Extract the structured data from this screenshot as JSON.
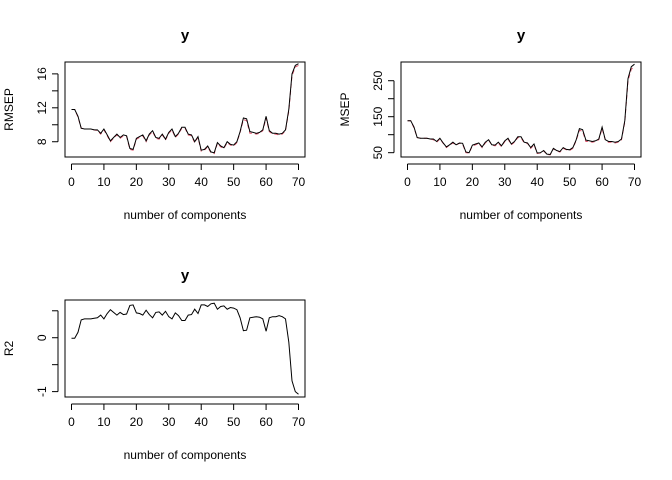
{
  "chart_data": [
    {
      "type": "line",
      "title": "y",
      "xlabel": "number of components",
      "ylabel": "RMSEP",
      "xlim": [
        -2,
        72
      ],
      "ylim": [
        6.2,
        17.4
      ],
      "xticks": [
        0,
        10,
        20,
        30,
        40,
        50,
        60,
        70
      ],
      "yticks": [
        8,
        12,
        16
      ],
      "yticks_minor": [
        10,
        14
      ],
      "x": [
        0,
        1,
        2,
        3,
        4,
        5,
        6,
        7,
        8,
        9,
        10,
        11,
        12,
        13,
        14,
        15,
        16,
        17,
        18,
        19,
        20,
        21,
        22,
        23,
        24,
        25,
        26,
        27,
        28,
        29,
        30,
        31,
        32,
        33,
        34,
        35,
        36,
        37,
        38,
        39,
        40,
        41,
        42,
        43,
        44,
        45,
        46,
        47,
        48,
        49,
        50,
        51,
        52,
        53,
        54,
        55,
        56,
        57,
        58,
        59,
        60,
        61,
        62,
        63,
        64,
        65,
        66,
        67,
        68,
        69,
        70
      ],
      "series": [
        {
          "values": [
            11.8,
            11.8,
            11.0,
            9.6,
            9.5,
            9.5,
            9.5,
            9.4,
            9.4,
            9.0,
            9.5,
            8.8,
            8.1,
            8.5,
            8.9,
            8.5,
            8.8,
            8.7,
            7.2,
            7.1,
            8.4,
            8.6,
            8.8,
            8.1,
            8.9,
            9.3,
            8.5,
            8.4,
            8.9,
            8.3,
            9.1,
            9.5,
            8.6,
            9.0,
            9.7,
            9.7,
            8.9,
            8.8,
            8.0,
            8.6,
            7.0,
            7.1,
            7.5,
            6.8,
            6.7,
            7.9,
            7.5,
            7.3,
            8.0,
            7.7,
            7.6,
            8.0,
            9.2,
            10.8,
            10.7,
            9.2,
            9.1,
            9.0,
            9.1,
            9.4,
            11.0,
            9.3,
            9.0,
            9.0,
            8.9,
            9.0,
            9.4,
            11.8,
            16.0,
            17.0,
            17.2
          ],
          "color": "#000000",
          "dash": "solid"
        },
        {
          "values": [
            11.8,
            11.8,
            10.9,
            9.6,
            9.5,
            9.5,
            9.5,
            9.4,
            9.3,
            8.9,
            9.4,
            8.7,
            8.0,
            8.4,
            8.8,
            8.4,
            8.7,
            8.6,
            7.1,
            7.0,
            8.3,
            8.5,
            8.7,
            8.0,
            8.8,
            9.2,
            8.4,
            8.3,
            8.8,
            8.2,
            9.0,
            9.4,
            8.5,
            8.9,
            9.6,
            9.6,
            8.8,
            8.7,
            7.9,
            8.5,
            6.9,
            7.0,
            7.4,
            6.7,
            6.6,
            7.8,
            7.4,
            7.2,
            7.9,
            7.6,
            7.5,
            7.9,
            9.1,
            10.6,
            10.5,
            9.0,
            9.0,
            8.9,
            9.0,
            9.3,
            10.8,
            9.2,
            8.9,
            8.9,
            8.8,
            8.9,
            9.3,
            11.6,
            15.8,
            16.8,
            17.0
          ],
          "color": "#df536b",
          "dash": "dashed"
        }
      ]
    },
    {
      "type": "line",
      "title": "y",
      "xlabel": "number of components",
      "ylabel": "MSEP",
      "xlim": [
        -2,
        72
      ],
      "ylim": [
        38,
        302
      ],
      "xticks": [
        0,
        10,
        20,
        30,
        40,
        50,
        60,
        70
      ],
      "yticks": [
        50,
        150,
        250
      ],
      "yticks_minor": [
        100,
        200
      ],
      "x": [
        0,
        1,
        2,
        3,
        4,
        5,
        6,
        7,
        8,
        9,
        10,
        11,
        12,
        13,
        14,
        15,
        16,
        17,
        18,
        19,
        20,
        21,
        22,
        23,
        24,
        25,
        26,
        27,
        28,
        29,
        30,
        31,
        32,
        33,
        34,
        35,
        36,
        37,
        38,
        39,
        40,
        41,
        42,
        43,
        44,
        45,
        46,
        47,
        48,
        49,
        50,
        51,
        52,
        53,
        54,
        55,
        56,
        57,
        58,
        59,
        60,
        61,
        62,
        63,
        64,
        65,
        66,
        67,
        68,
        69,
        70
      ],
      "series": [
        {
          "values": [
            139,
            139,
            121,
            92,
            90,
            90,
            90,
            88,
            88,
            81,
            90,
            77,
            66,
            72,
            79,
            72,
            77,
            76,
            52,
            50,
            71,
            74,
            77,
            66,
            79,
            86,
            72,
            71,
            79,
            69,
            83,
            90,
            74,
            81,
            94,
            94,
            79,
            77,
            64,
            74,
            49,
            50,
            56,
            46,
            45,
            62,
            56,
            53,
            64,
            59,
            58,
            64,
            85,
            117,
            114,
            85,
            83,
            81,
            83,
            88,
            121,
            86,
            81,
            81,
            79,
            81,
            88,
            139,
            256,
            289,
            296
          ],
          "color": "#000000",
          "dash": "solid"
        },
        {
          "values": [
            139,
            139,
            119,
            92,
            90,
            90,
            90,
            88,
            86,
            79,
            88,
            76,
            64,
            71,
            77,
            71,
            76,
            74,
            50,
            49,
            69,
            72,
            76,
            64,
            77,
            85,
            71,
            69,
            77,
            67,
            81,
            88,
            72,
            79,
            92,
            92,
            77,
            76,
            62,
            72,
            48,
            49,
            55,
            45,
            44,
            61,
            55,
            52,
            62,
            58,
            56,
            62,
            83,
            112,
            110,
            81,
            81,
            79,
            81,
            86,
            117,
            85,
            79,
            79,
            77,
            79,
            86,
            135,
            250,
            282,
            289
          ],
          "color": "#df536b",
          "dash": "dashed"
        }
      ]
    },
    {
      "type": "line",
      "title": "y",
      "xlabel": "number of components",
      "ylabel": "R2",
      "xlim": [
        -2,
        72
      ],
      "ylim": [
        -1.1,
        0.7
      ],
      "xticks": [
        0,
        10,
        20,
        30,
        40,
        50,
        60,
        70
      ],
      "yticks": [
        -1.0,
        0.0
      ],
      "yticks_minor": [
        -0.5,
        0.5
      ],
      "x": [
        0,
        1,
        2,
        3,
        4,
        5,
        6,
        7,
        8,
        9,
        10,
        11,
        12,
        13,
        14,
        15,
        16,
        17,
        18,
        19,
        20,
        21,
        22,
        23,
        24,
        25,
        26,
        27,
        28,
        29,
        30,
        31,
        32,
        33,
        34,
        35,
        36,
        37,
        38,
        39,
        40,
        41,
        42,
        43,
        44,
        45,
        46,
        47,
        48,
        49,
        50,
        51,
        52,
        53,
        54,
        55,
        56,
        57,
        58,
        59,
        60,
        61,
        62,
        63,
        64,
        65,
        66,
        67,
        68,
        69,
        70
      ],
      "series": [
        {
          "values": [
            -0.01,
            -0.01,
            0.1,
            0.33,
            0.35,
            0.35,
            0.35,
            0.36,
            0.37,
            0.42,
            0.35,
            0.45,
            0.52,
            0.47,
            0.42,
            0.47,
            0.43,
            0.44,
            0.6,
            0.61,
            0.46,
            0.45,
            0.42,
            0.51,
            0.43,
            0.37,
            0.47,
            0.48,
            0.42,
            0.49,
            0.39,
            0.35,
            0.46,
            0.41,
            0.32,
            0.32,
            0.42,
            0.43,
            0.53,
            0.45,
            0.61,
            0.61,
            0.58,
            0.63,
            0.64,
            0.53,
            0.58,
            0.59,
            0.53,
            0.56,
            0.55,
            0.52,
            0.37,
            0.13,
            0.14,
            0.37,
            0.38,
            0.39,
            0.38,
            0.35,
            0.12,
            0.37,
            0.39,
            0.39,
            0.41,
            0.39,
            0.35,
            -0.08,
            -0.8,
            -1.0,
            -1.05
          ],
          "color": "#000000",
          "dash": "solid"
        }
      ]
    }
  ]
}
